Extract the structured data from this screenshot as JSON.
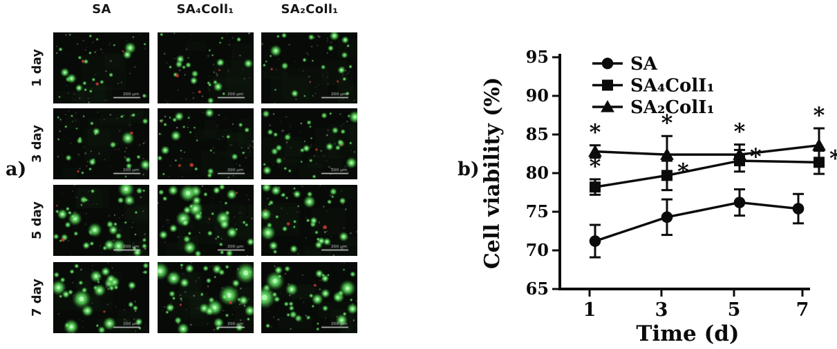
{
  "panel_a": {
    "label": "a)",
    "column_headers": [
      "SA",
      "SA₄Coll₁",
      "SA₂Coll₁"
    ],
    "row_labels": [
      "1 day",
      "3 day",
      "5 day",
      "7 day"
    ],
    "scale_bar_label": "200 μm",
    "dot_density_by_row": [
      20,
      26,
      34,
      38
    ],
    "red_dots_by_row": [
      3,
      2,
      2,
      1
    ]
  },
  "panel_b": {
    "label": "b)"
  },
  "chart_data": {
    "type": "line",
    "x": [
      1,
      3,
      5,
      7
    ],
    "xlabel": "Time (d)",
    "ylabel": "Cell viability (%)",
    "ylim": [
      65,
      95
    ],
    "yticks": [
      65,
      70,
      75,
      80,
      85,
      90,
      95
    ],
    "xticks": [
      "1",
      "3",
      "5",
      "7"
    ],
    "legend_position": "top-left-inside",
    "significance_symbol": "*",
    "series": [
      {
        "name": "SA",
        "marker": "circle",
        "values": [
          71.2,
          74.3,
          76.2,
          75.4
        ],
        "errors": [
          2.1,
          2.3,
          1.7,
          1.9
        ],
        "sig": [
          "",
          "",
          "",
          ""
        ]
      },
      {
        "name": "SA₄ColI₁",
        "marker": "square",
        "values": [
          78.2,
          79.7,
          81.6,
          81.4
        ],
        "errors": [
          1.0,
          1.9,
          1.4,
          1.5
        ],
        "sig": [
          "above",
          "right",
          "right",
          "right"
        ]
      },
      {
        "name": "SA₂ColI₁",
        "marker": "triangle",
        "values": [
          82.8,
          82.4,
          82.4,
          83.6
        ],
        "errors": [
          0.8,
          2.4,
          1.3,
          2.2
        ],
        "sig": [
          "above",
          "above",
          "above",
          "above"
        ]
      }
    ]
  },
  "colors": {
    "foreground": "#0b0b0b",
    "micrograph_background": "#070a07",
    "live_cell_green": "#5ad85a",
    "dead_cell_red": "#d23c32",
    "scale_bar_white": "#e6e6e6"
  }
}
